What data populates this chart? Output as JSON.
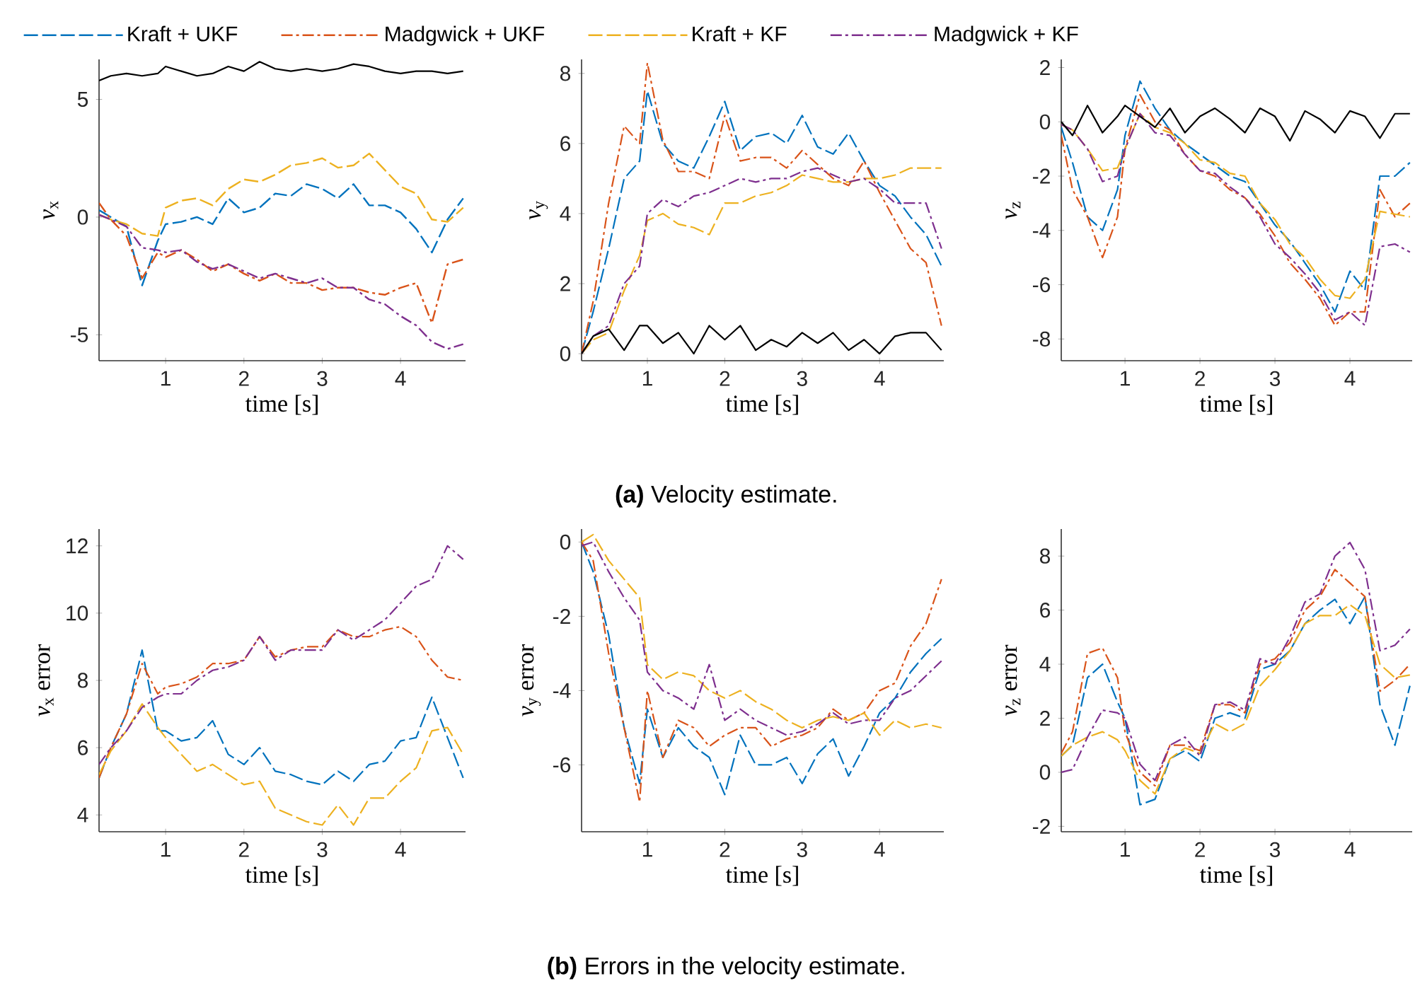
{
  "chart_data": [
    {
      "type": "line",
      "xlabel": "time [s]",
      "ylabel": "*v*$_{x}$",
      "xlim": [
        0.15,
        4.83
      ],
      "xticks": [
        1,
        2,
        3,
        4
      ],
      "ylim": [
        -6.1,
        6.7
      ],
      "yticks": [
        -5,
        0,
        5
      ],
      "legend": "top",
      "x": [
        0.15,
        0.3,
        0.5,
        0.7,
        0.9,
        1.0,
        1.2,
        1.4,
        1.6,
        1.8,
        2.0,
        2.2,
        2.4,
        2.6,
        2.8,
        3.0,
        3.2,
        3.4,
        3.6,
        3.8,
        4.0,
        4.2,
        4.4,
        4.6,
        4.8
      ],
      "series": [
        {
          "name": "Kraft + UKF",
          "color": "#0072bd",
          "line_style": "dashed",
          "values": [
            0.3,
            0,
            -0.4,
            -2.9,
            -1,
            -0.3,
            -0.2,
            0,
            -0.3,
            0.8,
            0.2,
            0.4,
            1.0,
            0.9,
            1.4,
            1.2,
            0.8,
            1.4,
            0.5,
            0.5,
            0.2,
            -0.5,
            -1.5,
            -0.1,
            0.8
          ]
        },
        {
          "name": "Madgwick + UKF",
          "color": "#d95319",
          "line_style": "dashdot",
          "values": [
            0.6,
            -0.1,
            -0.8,
            -2.6,
            -1.5,
            -1.7,
            -1.4,
            -1.8,
            -2.3,
            -2.0,
            -2.4,
            -2.7,
            -2.4,
            -2.8,
            -2.8,
            -3.1,
            -3.0,
            -3.0,
            -3.2,
            -3.3,
            -3.0,
            -2.8,
            -4.5,
            -2.0,
            -1.8
          ]
        },
        {
          "name": "Kraft + KF",
          "color": "#edb120",
          "line_style": "dashed",
          "values": [
            0.1,
            -0.1,
            -0.3,
            -0.7,
            -0.8,
            0.4,
            0.7,
            0.8,
            0.5,
            1.2,
            1.6,
            1.5,
            1.8,
            2.2,
            2.3,
            2.5,
            2.1,
            2.2,
            2.7,
            2.0,
            1.3,
            1.0,
            -0.1,
            -0.2,
            0.4
          ]
        },
        {
          "name": "Madgwick + KF",
          "color": "#7e2f8e",
          "line_style": "dashdot",
          "values": [
            0.1,
            -0.1,
            -0.4,
            -1.3,
            -1.4,
            -1.5,
            -1.4,
            -1.9,
            -2.2,
            -2.0,
            -2.3,
            -2.6,
            -2.4,
            -2.6,
            -2.8,
            -2.6,
            -3.0,
            -3.0,
            -3.5,
            -3.7,
            -4.2,
            -4.6,
            -5.3,
            -5.6,
            -5.4
          ]
        },
        {
          "color": "#000000",
          "line_style": "solid",
          "values": [
            5.8,
            6.0,
            6.1,
            6.0,
            6.1,
            6.4,
            6.2,
            6.0,
            6.1,
            6.4,
            6.2,
            6.6,
            6.3,
            6.2,
            6.3,
            6.2,
            6.3,
            6.5,
            6.4,
            6.2,
            6.1,
            6.2,
            6.2,
            6.1,
            6.2
          ]
        }
      ]
    },
    {
      "type": "line",
      "xlabel": "time [s]",
      "ylabel": "*v*$_{y}$",
      "xlim": [
        0.15,
        4.83
      ],
      "xticks": [
        1,
        2,
        3,
        4
      ],
      "ylim": [
        -0.2,
        8.4
      ],
      "yticks": [
        0,
        2,
        4,
        6,
        8
      ],
      "annotations": [
        "**(a)** Velocity estimate."
      ],
      "x": [
        0.15,
        0.3,
        0.5,
        0.7,
        0.9,
        1.0,
        1.2,
        1.4,
        1.6,
        1.8,
        2.0,
        2.2,
        2.4,
        2.6,
        2.8,
        3.0,
        3.2,
        3.4,
        3.6,
        3.8,
        4.0,
        4.2,
        4.4,
        4.6,
        4.8
      ],
      "series": [
        {
          "color": "#0072bd",
          "line_style": "dashed",
          "values": [
            0,
            1.2,
            3.0,
            5.0,
            5.5,
            7.5,
            6.0,
            5.5,
            5.3,
            6.2,
            7.2,
            5.8,
            6.2,
            6.3,
            6.0,
            6.8,
            5.9,
            5.7,
            6.3,
            5.5,
            4.8,
            4.5,
            3.9,
            3.4,
            2.5
          ]
        },
        {
          "color": "#d95319",
          "line_style": "dashdot",
          "values": [
            0,
            1.5,
            4.3,
            6.5,
            6.0,
            8.3,
            6.1,
            5.2,
            5.2,
            5.0,
            6.8,
            5.5,
            5.6,
            5.6,
            5.3,
            5.8,
            5.4,
            5.0,
            4.8,
            5.5,
            4.6,
            3.8,
            3.0,
            2.6,
            0.8
          ]
        },
        {
          "color": "#edb120",
          "line_style": "dashed",
          "values": [
            0,
            0.4,
            0.6,
            1.8,
            2.8,
            3.8,
            4.0,
            3.7,
            3.6,
            3.4,
            4.3,
            4.3,
            4.5,
            4.6,
            4.8,
            5.1,
            5.0,
            4.9,
            4.9,
            5.0,
            5.0,
            5.1,
            5.3,
            5.3,
            5.3
          ]
        },
        {
          "color": "#7e2f8e",
          "line_style": "dashdot",
          "values": [
            0,
            0.5,
            0.8,
            2.0,
            2.5,
            4.0,
            4.4,
            4.2,
            4.5,
            4.6,
            4.8,
            5.0,
            4.9,
            5.0,
            5.0,
            5.2,
            5.3,
            5.1,
            4.9,
            5.0,
            4.7,
            4.3,
            4.3,
            4.3,
            3.0
          ]
        },
        {
          "color": "#000000",
          "line_style": "solid",
          "values": [
            0,
            0.5,
            0.7,
            0.1,
            0.8,
            0.8,
            0.3,
            0.6,
            0.0,
            0.8,
            0.4,
            0.8,
            0.1,
            0.4,
            0.2,
            0.6,
            0.3,
            0.6,
            0.1,
            0.4,
            0.0,
            0.5,
            0.6,
            0.6,
            0.1
          ]
        }
      ]
    },
    {
      "type": "line",
      "xlabel": "time [s]",
      "ylabel": "*v*$_{z}$",
      "xlim": [
        0.15,
        4.83
      ],
      "xticks": [
        1,
        2,
        3,
        4
      ],
      "ylim": [
        -8.8,
        2.3
      ],
      "yticks": [
        -8,
        -6,
        -4,
        -2,
        0,
        2
      ],
      "x": [
        0.15,
        0.3,
        0.5,
        0.7,
        0.9,
        1.0,
        1.2,
        1.4,
        1.6,
        1.8,
        2.0,
        2.2,
        2.4,
        2.6,
        2.8,
        3.0,
        3.2,
        3.4,
        3.6,
        3.8,
        4.0,
        4.2,
        4.4,
        4.6,
        4.8
      ],
      "series": [
        {
          "color": "#0072bd",
          "line_style": "dashed",
          "values": [
            -0.2,
            -1.5,
            -3.5,
            -4.0,
            -2.5,
            -0.5,
            1.5,
            0.5,
            -0.3,
            -0.8,
            -1.2,
            -1.6,
            -2.0,
            -2.2,
            -3.0,
            -3.8,
            -4.4,
            -5.2,
            -6.0,
            -7.0,
            -5.5,
            -6.2,
            -2.0,
            -2.0,
            -1.5
          ]
        },
        {
          "color": "#d95319",
          "line_style": "dashdot",
          "values": [
            -0.5,
            -2.5,
            -3.5,
            -5.0,
            -3.5,
            -1.0,
            1.0,
            0.0,
            -0.3,
            -1.2,
            -1.8,
            -2.0,
            -2.5,
            -2.8,
            -3.4,
            -4.2,
            -5.2,
            -5.8,
            -6.5,
            -7.5,
            -7.0,
            -7.0,
            -2.5,
            -3.5,
            -3.0
          ]
        },
        {
          "color": "#edb120",
          "line_style": "dashed",
          "values": [
            -0.1,
            -0.3,
            -1.0,
            -1.8,
            -1.7,
            -1.0,
            0.3,
            -0.2,
            -0.4,
            -0.8,
            -1.4,
            -1.5,
            -1.9,
            -2.0,
            -3.0,
            -3.6,
            -4.5,
            -5.0,
            -5.8,
            -6.4,
            -6.5,
            -5.8,
            -3.3,
            -3.4,
            -3.5
          ]
        },
        {
          "color": "#7e2f8e",
          "line_style": "dashdot",
          "values": [
            -0.1,
            -0.3,
            -1.0,
            -2.2,
            -2.0,
            -1.0,
            0.3,
            -0.4,
            -0.5,
            -1.2,
            -1.8,
            -1.9,
            -2.4,
            -2.8,
            -3.5,
            -4.5,
            -5.0,
            -5.6,
            -6.3,
            -7.3,
            -7.0,
            -7.5,
            -4.6,
            -4.5,
            -4.8
          ]
        },
        {
          "color": "#000000",
          "line_style": "solid",
          "values": [
            0,
            -0.5,
            0.6,
            -0.4,
            0.2,
            0.6,
            0.2,
            -0.2,
            0.5,
            -0.4,
            0.2,
            0.5,
            0.1,
            -0.4,
            0.5,
            0.2,
            -0.7,
            0.4,
            0.1,
            -0.4,
            0.4,
            0.2,
            -0.6,
            0.3,
            0.3
          ]
        }
      ]
    },
    {
      "type": "line",
      "xlabel": "time [s]",
      "ylabel": "*v*$_{x}$ error",
      "xlim": [
        0.15,
        4.83
      ],
      "xticks": [
        1,
        2,
        3,
        4
      ],
      "ylim": [
        3.5,
        12.5
      ],
      "yticks": [
        4,
        6,
        8,
        10,
        12
      ],
      "x": [
        0.15,
        0.3,
        0.5,
        0.7,
        0.9,
        1.0,
        1.2,
        1.4,
        1.6,
        1.8,
        2.0,
        2.2,
        2.4,
        2.6,
        2.8,
        3.0,
        3.2,
        3.4,
        3.6,
        3.8,
        4.0,
        4.2,
        4.4,
        4.6,
        4.8
      ],
      "series": [
        {
          "color": "#0072bd",
          "line_style": "dashed",
          "values": [
            5.1,
            6.0,
            7.0,
            8.9,
            6.5,
            6.5,
            6.2,
            6.3,
            6.8,
            5.8,
            5.5,
            6.0,
            5.3,
            5.2,
            5.0,
            4.9,
            5.3,
            5.0,
            5.5,
            5.6,
            6.2,
            6.3,
            7.5,
            6.3,
            5.1
          ]
        },
        {
          "color": "#d95319",
          "line_style": "dashdot",
          "values": [
            5.1,
            6.0,
            7.0,
            8.5,
            7.6,
            7.8,
            7.9,
            8.1,
            8.5,
            8.5,
            8.6,
            9.3,
            8.7,
            8.9,
            9.0,
            9.0,
            9.5,
            9.3,
            9.3,
            9.5,
            9.6,
            9.3,
            8.6,
            8.1,
            8.0
          ]
        },
        {
          "color": "#edb120",
          "line_style": "dashed",
          "values": [
            5.2,
            5.9,
            6.5,
            7.3,
            6.6,
            6.3,
            5.8,
            5.3,
            5.5,
            5.2,
            4.9,
            5.0,
            4.2,
            4.0,
            3.8,
            3.7,
            4.3,
            3.7,
            4.5,
            4.5,
            5.0,
            5.4,
            6.5,
            6.6,
            5.8
          ]
        },
        {
          "color": "#7e2f8e",
          "line_style": "dashdot",
          "values": [
            5.5,
            6.0,
            6.5,
            7.2,
            7.5,
            7.6,
            7.6,
            8.0,
            8.3,
            8.4,
            8.6,
            9.3,
            8.6,
            8.9,
            8.9,
            8.9,
            9.5,
            9.2,
            9.5,
            9.8,
            10.3,
            10.8,
            11.0,
            12.0,
            11.6
          ]
        }
      ]
    },
    {
      "type": "line",
      "xlabel": "time [s]",
      "ylabel": "*v*$_{y}$ error",
      "xlim": [
        0.15,
        4.83
      ],
      "xticks": [
        1,
        2,
        3,
        4
      ],
      "ylim": [
        -7.8,
        0.35
      ],
      "yticks": [
        -6,
        -4,
        -2,
        0
      ],
      "annotations": [
        "**(b)** Errors in the velocity estimate."
      ],
      "x": [
        0.15,
        0.3,
        0.5,
        0.7,
        0.9,
        1.0,
        1.2,
        1.4,
        1.6,
        1.8,
        2.0,
        2.2,
        2.4,
        2.6,
        2.8,
        3.0,
        3.2,
        3.4,
        3.6,
        3.8,
        4.0,
        4.2,
        4.4,
        4.6,
        4.8
      ],
      "series": [
        {
          "color": "#0072bd",
          "line_style": "dashed",
          "values": [
            0,
            -0.8,
            -2.5,
            -5.0,
            -6.5,
            -4.5,
            -5.8,
            -5.0,
            -5.5,
            -5.8,
            -6.8,
            -5.2,
            -6.0,
            -6.0,
            -5.8,
            -6.5,
            -5.7,
            -5.3,
            -6.3,
            -5.5,
            -4.6,
            -4.2,
            -3.5,
            -3.0,
            -2.6
          ]
        },
        {
          "color": "#d95319",
          "line_style": "dashdot",
          "values": [
            0,
            -0.5,
            -3.0,
            -5.0,
            -7.0,
            -4.0,
            -5.8,
            -4.8,
            -5.0,
            -5.5,
            -5.2,
            -5.0,
            -5.0,
            -5.5,
            -5.3,
            -5.2,
            -5.0,
            -4.5,
            -4.8,
            -4.6,
            -4.0,
            -3.8,
            -2.8,
            -2.2,
            -1.0
          ]
        },
        {
          "color": "#edb120",
          "line_style": "dashed",
          "values": [
            0,
            0.2,
            -0.5,
            -1.0,
            -1.5,
            -3.3,
            -3.7,
            -3.5,
            -3.6,
            -4.0,
            -4.2,
            -4.0,
            -4.3,
            -4.5,
            -4.8,
            -5.0,
            -4.8,
            -4.7,
            -4.8,
            -4.6,
            -5.2,
            -4.8,
            -5.0,
            -4.9,
            -5.0
          ]
        },
        {
          "color": "#7e2f8e",
          "line_style": "dashdot",
          "values": [
            -0.1,
            0.0,
            -0.8,
            -1.5,
            -2.1,
            -3.5,
            -4.0,
            -4.2,
            -4.5,
            -3.3,
            -4.8,
            -4.5,
            -4.8,
            -5.0,
            -5.2,
            -5.1,
            -4.9,
            -4.6,
            -4.9,
            -4.8,
            -4.8,
            -4.2,
            -4.0,
            -3.6,
            -3.2
          ]
        }
      ]
    },
    {
      "type": "line",
      "xlabel": "time [s]",
      "ylabel": "*v*$_{z}$ error",
      "xlim": [
        0.15,
        4.83
      ],
      "xticks": [
        1,
        2,
        3,
        4
      ],
      "ylim": [
        -2.2,
        9.0
      ],
      "yticks": [
        -2,
        0,
        2,
        4,
        6,
        8
      ],
      "x": [
        0.15,
        0.3,
        0.5,
        0.7,
        0.9,
        1.0,
        1.2,
        1.4,
        1.6,
        1.8,
        2.0,
        2.2,
        2.4,
        2.6,
        2.8,
        3.0,
        3.2,
        3.4,
        3.6,
        3.8,
        4.0,
        4.2,
        4.4,
        4.6,
        4.8
      ],
      "series": [
        {
          "color": "#0072bd",
          "line_style": "dashed",
          "values": [
            0.6,
            1.0,
            3.5,
            4.0,
            2.6,
            2.0,
            -1.2,
            -1.0,
            0.5,
            0.8,
            0.4,
            2.0,
            2.2,
            2.0,
            3.8,
            4.0,
            4.5,
            5.5,
            6.0,
            6.4,
            5.5,
            6.5,
            2.5,
            1.0,
            3.2
          ]
        },
        {
          "color": "#d95319",
          "line_style": "dashdot",
          "values": [
            0.7,
            1.5,
            4.4,
            4.6,
            3.5,
            1.5,
            0.0,
            -0.5,
            1.0,
            1.0,
            0.8,
            2.5,
            2.5,
            2.2,
            4.0,
            4.2,
            4.8,
            6.0,
            6.5,
            7.5,
            7.0,
            6.5,
            3.0,
            3.4,
            4.0
          ]
        },
        {
          "color": "#edb120",
          "line_style": "dashed",
          "values": [
            0.6,
            1.0,
            1.3,
            1.5,
            1.2,
            0.8,
            -0.3,
            -0.8,
            0.5,
            0.9,
            0.7,
            1.8,
            1.5,
            1.8,
            3.2,
            3.8,
            4.5,
            5.5,
            5.8,
            5.8,
            6.2,
            5.8,
            4.0,
            3.5,
            3.6
          ]
        },
        {
          "color": "#7e2f8e",
          "line_style": "dashdot",
          "values": [
            0,
            0.1,
            1.3,
            2.3,
            2.2,
            2.0,
            0.3,
            -0.3,
            1.0,
            1.3,
            0.6,
            2.5,
            2.6,
            2.3,
            4.2,
            4.0,
            5.0,
            6.3,
            6.6,
            8.0,
            8.5,
            7.5,
            4.5,
            4.7,
            5.3
          ]
        }
      ]
    }
  ]
}
